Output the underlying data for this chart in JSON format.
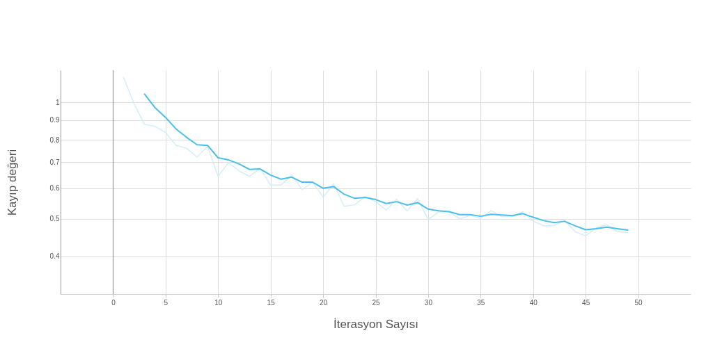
{
  "chart_data": {
    "type": "line",
    "xlabel": "İterasyon Sayısı",
    "ylabel": "Kayıp değeri",
    "log": "y",
    "grid": true,
    "legend": false,
    "marker": "none",
    "line_style": "solid",
    "x": [
      1,
      2,
      3,
      4,
      5,
      6,
      7,
      8,
      9,
      10,
      11,
      12,
      13,
      14,
      15,
      16,
      17,
      18,
      19,
      20,
      21,
      22,
      23,
      24,
      25,
      26,
      27,
      28,
      29,
      30,
      31,
      32,
      33,
      34,
      35,
      36,
      37,
      38,
      39,
      40,
      41,
      42,
      43,
      44,
      45,
      46,
      47,
      48,
      49
    ],
    "xlim": [
      -5,
      55
    ],
    "xticks": [
      0,
      5,
      10,
      15,
      20,
      25,
      30,
      35,
      40,
      45,
      50
    ],
    "ylim": [
      0.32,
      1.21
    ],
    "yticks": [
      0.4,
      0.5,
      0.6,
      0.7,
      0.8,
      0.9,
      1
    ],
    "ref_lines": [
      {
        "axis": "x",
        "value": 0,
        "color": "#888888"
      }
    ],
    "series": [
      {
        "color": "#d4eefa",
        "values": [
          1.16,
          0.99,
          0.877,
          0.867,
          0.836,
          0.774,
          0.761,
          0.722,
          0.77,
          0.644,
          0.699,
          0.665,
          0.644,
          0.676,
          0.611,
          0.611,
          0.649,
          0.595,
          0.622,
          0.569,
          0.616,
          0.539,
          0.544,
          0.571,
          0.554,
          0.527,
          0.562,
          0.524,
          0.564,
          0.498,
          0.521,
          0.522,
          0.5,
          0.511,
          0.502,
          0.525,
          0.507,
          0.507,
          0.522,
          0.493,
          0.48,
          0.481,
          0.495,
          0.464,
          0.452,
          0.474,
          0.483,
          0.464,
          0.461
        ]
      },
      {
        "color": "#4bbfea",
        "values": [
          null,
          null,
          1.05,
          0.968,
          0.914,
          0.853,
          0.812,
          0.777,
          0.774,
          0.719,
          0.71,
          0.693,
          0.671,
          0.673,
          0.649,
          0.633,
          0.641,
          0.622,
          0.622,
          0.6,
          0.606,
          0.579,
          0.565,
          0.568,
          0.561,
          0.548,
          0.554,
          0.543,
          0.551,
          0.53,
          0.525,
          0.522,
          0.513,
          0.513,
          0.508,
          0.514,
          0.512,
          0.51,
          0.516,
          0.505,
          0.495,
          0.489,
          0.493,
          0.48,
          0.469,
          0.472,
          0.476,
          0.472,
          0.468
        ]
      }
    ]
  }
}
